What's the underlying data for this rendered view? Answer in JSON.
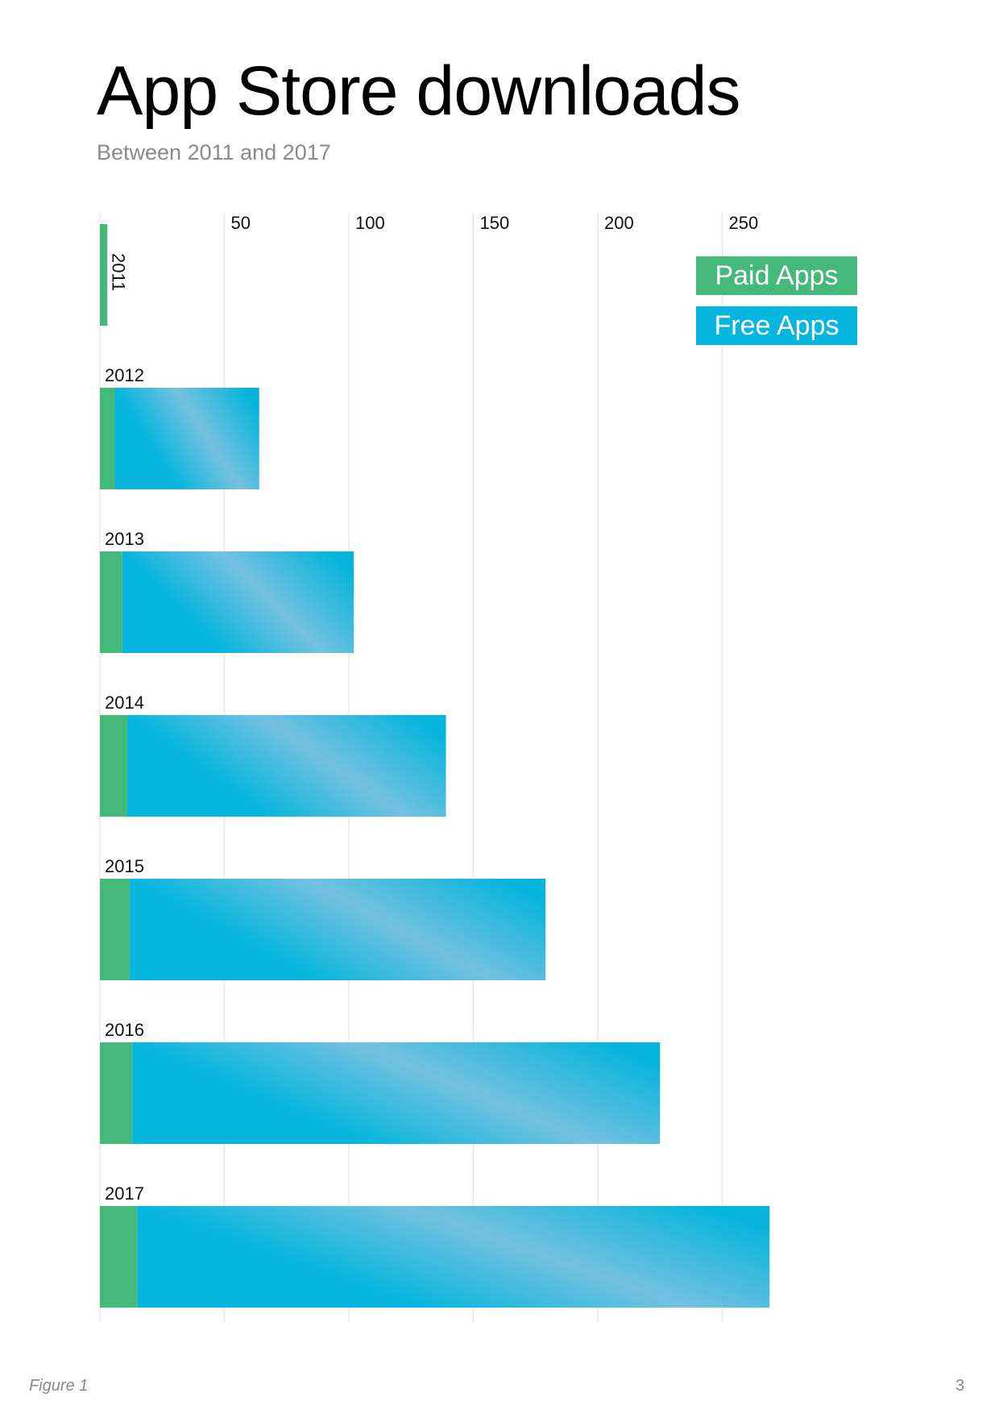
{
  "title": "App Store downloads",
  "subtitle": "Between 2011 and 2017",
  "footer": {
    "figure_label": "Figure 1",
    "page_number": "3"
  },
  "colors": {
    "paid": "#44b97a",
    "free": "#07b6de",
    "gridline": "#e8e8e8"
  },
  "chart_data": {
    "type": "bar",
    "orientation": "horizontal",
    "stacked": true,
    "categories": [
      "2011",
      "2012",
      "2013",
      "2014",
      "2015",
      "2016",
      "2017"
    ],
    "series": [
      {
        "name": "Paid Apps",
        "values": [
          3,
          6,
          9,
          11,
          12,
          13,
          15
        ]
      },
      {
        "name": "Free Apps",
        "values": [
          0,
          58,
          93,
          128,
          167,
          212,
          254
        ]
      }
    ],
    "xticks": [
      "50",
      "100",
      "150",
      "200",
      "250"
    ],
    "xlim": [
      0,
      280
    ],
    "grid": true,
    "legend_position": "top-right"
  }
}
